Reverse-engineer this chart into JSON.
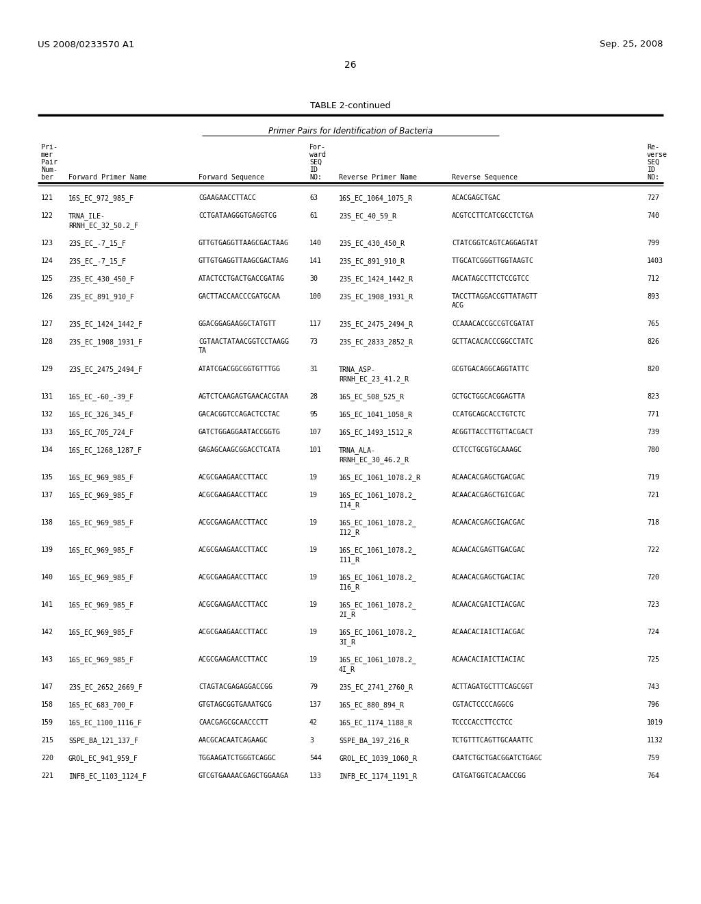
{
  "header_left": "US 2008/0233570 A1",
  "header_right": "Sep. 25, 2008",
  "page_number": "26",
  "table_title": "TABLE 2-continued",
  "table_subtitle": "Primer Pairs for Identification of Bacteria",
  "rows": [
    [
      "121",
      "16S_EC_972_985_F",
      "CGAAGAACCTTACC",
      "63",
      "16S_EC_1064_1075_R",
      "ACACGAGCTGAC",
      "727"
    ],
    [
      "122",
      "TRNA_ILE-\nRRNH_EC_32_50.2_F",
      "CCTGATAAGGGTGAGGTCG",
      "61",
      "23S_EC_40_59_R",
      "ACGTCCTTCATCGCCTCTGA",
      "740"
    ],
    [
      "123",
      "23S_EC_-7_15_F",
      "GTTGTGAGGTTAAGCGACTAAG",
      "140",
      "23S_EC_430_450_R",
      "CTATCGGTCAGTCAGGAGTAT",
      "799"
    ],
    [
      "124",
      "23S_EC_-7_15_F",
      "GTTGTGAGGTTAAGCGACTAAG",
      "141",
      "23S_EC_891_910_R",
      "TTGCATCGGGTTGGTAAGTC",
      "1403"
    ],
    [
      "125",
      "23S_EC_430_450_F",
      "ATACTCCTGACTGACCGATAG",
      "30",
      "23S_EC_1424_1442_R",
      "AACATAGCCTTCTCCGTCC",
      "712"
    ],
    [
      "126",
      "23S_EC_891_910_F",
      "GACTTACCAACCCGATGCAA",
      "100",
      "23S_EC_1908_1931_R",
      "TACCTTAGGACCGTTATAGTT\nACG",
      "893"
    ],
    [
      "127",
      "23S_EC_1424_1442_F",
      "GGACGGAGAAGGCTATGTT",
      "117",
      "23S_EC_2475_2494_R",
      "CCAAACACCGCCGTCGATAT",
      "765"
    ],
    [
      "128",
      "23S_EC_1908_1931_F",
      "CGTAACTATAACGGTCCTAAGG\nTA",
      "73",
      "23S_EC_2833_2852_R",
      "GCTTACACACCCGGCCTATC",
      "826"
    ],
    [
      "129",
      "23S_EC_2475_2494_F",
      "ATATCGACGGCGGTGTTTGG",
      "31",
      "TRNA_ASP-\nRRNH_EC_23_41.2_R",
      "GCGTGACAGGCAGGTATTC",
      "820"
    ],
    [
      "131",
      "16S_EC_-60_-39_F",
      "AGTCTCAAGAGTGAACACGTAA",
      "28",
      "16S_EC_508_525_R",
      "GCTGCTGGCACGGAGTTA",
      "823"
    ],
    [
      "132",
      "16S_EC_326_345_F",
      "GACACGGTCCAGACTCCTAC",
      "95",
      "16S_EC_1041_1058_R",
      "CCATGCAGCACCTGTCTC",
      "771"
    ],
    [
      "133",
      "16S_EC_705_724_F",
      "GATCTGGAGGAATACCGGTG",
      "107",
      "16S_EC_1493_1512_R",
      "ACGGTTACCTTGTTACGACT",
      "739"
    ],
    [
      "134",
      "16S_EC_1268_1287_F",
      "GAGAGCAAGCGGACCTCATA",
      "101",
      "TRNA_ALA-\nRRNH_EC_30_46.2_R",
      "CCTCCTGCGTGCAAAGC",
      "780"
    ],
    [
      "135",
      "16S_EC_969_985_F",
      "ACGCGAAGAACCTTACC",
      "19",
      "16S_EC_1061_1078.2_R",
      "ACAACACGAGCTGACGAC",
      "719"
    ],
    [
      "137",
      "16S_EC_969_985_F",
      "ACGCGAAGAACCTTACC",
      "19",
      "16S_EC_1061_1078.2_\nI14_R",
      "ACAACACGAGCTGICGAC",
      "721"
    ],
    [
      "138",
      "16S_EC_969_985_F",
      "ACGCGAAGAACCTTACC",
      "19",
      "16S_EC_1061_1078.2_\nI12_R",
      "ACAACACGAGCIGACGAC",
      "718"
    ],
    [
      "139",
      "16S_EC_969_985_F",
      "ACGCGAAGAACCTTACC",
      "19",
      "16S_EC_1061_1078.2_\nI11_R",
      "ACAACACGAGTTGACGAC",
      "722"
    ],
    [
      "140",
      "16S_EC_969_985_F",
      "ACGCGAAGAACCTTACC",
      "19",
      "16S_EC_1061_1078.2_\nI16_R",
      "ACAACACGAGCTGACIAC",
      "720"
    ],
    [
      "141",
      "16S_EC_969_985_F",
      "ACGCGAAGAACCTTACC",
      "19",
      "16S_EC_1061_1078.2_\n2I_R",
      "ACAACACGAICTIACGAC",
      "723"
    ],
    [
      "142",
      "16S_EC_969_985_F",
      "ACGCGAAGAACCTTACC",
      "19",
      "16S_EC_1061_1078.2_\n3I_R",
      "ACAACACIAICTIACGAC",
      "724"
    ],
    [
      "143",
      "16S_EC_969_985_F",
      "ACGCGAAGAACCTTACC",
      "19",
      "16S_EC_1061_1078.2_\n4I_R",
      "ACAACACIAICTIACIAC",
      "725"
    ],
    [
      "147",
      "23S_EC_2652_2669_F",
      "CTAGTACGAGAGGACCGG",
      "79",
      "23S_EC_2741_2760_R",
      "ACTTAGATGCTTTCAGCGGT",
      "743"
    ],
    [
      "158",
      "16S_EC_683_700_F",
      "GTGTAGCGGTGAAATGCG",
      "137",
      "16S_EC_880_894_R",
      "CGTACTCCCCAGGCG",
      "796"
    ],
    [
      "159",
      "16S_EC_1100_1116_F",
      "CAACGAGCGCAACCCTT",
      "42",
      "16S_EC_1174_1188_R",
      "TCCCCACCTTCCTCC",
      "1019"
    ],
    [
      "215",
      "SSPE_BA_121_137_F",
      "AACGCACAATCAGAAGC",
      "3",
      "SSPE_BA_197_216_R",
      "TCTGTTTCAGTTGCAAATTC",
      "1132"
    ],
    [
      "220",
      "GROL_EC_941_959_F",
      "TGGAAGATCTGGGTCAGGC",
      "544",
      "GROL_EC_1039_1060_R",
      "CAATCTGCTGACGGATCTGAGC",
      "759"
    ],
    [
      "221",
      "INFB_EC_1103_1124_F",
      "GTCGTGAAAACGAGCTGGAAGA",
      "133",
      "INFB_EC_1174_1191_R",
      "CATGATGGTCACAACCGG",
      "764"
    ]
  ],
  "bg_color": "#ffffff",
  "text_color": "#000000",
  "line_color": "#000000"
}
